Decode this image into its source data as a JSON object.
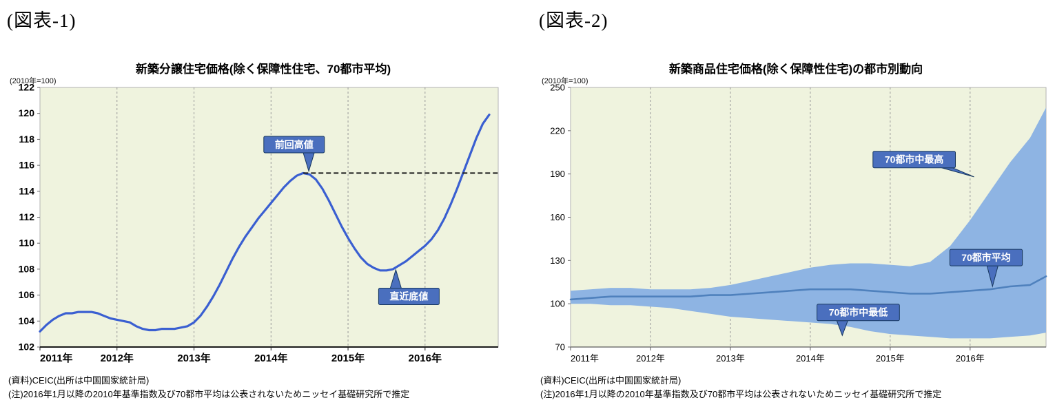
{
  "figures": [
    {
      "panel_label": "(図表-1)",
      "source": "(資料)CEIC(出所は中国国家統計局)",
      "note": "(注)2016年1月以降の2010年基準指数及び70都市平均は公表されないためニッセイ基礎研究所で推定"
    },
    {
      "panel_label": "(図表-2)",
      "source": "(資料)CEIC(出所は中国国家統計局)",
      "note": "(注)2016年1月以降の2010年基準指数及び70都市平均は公表されないためニッセイ基礎研究所で推定"
    }
  ],
  "chart_data": [
    {
      "id": "fig1",
      "type": "line",
      "title": "新築分譲住宅価格(除く保障性住宅、70都市平均)",
      "unit_label": "(2010年=100)",
      "xlim": [
        2011,
        2016.95
      ],
      "ylim": [
        102,
        122
      ],
      "ytick_step": 2,
      "xticks": [
        2011,
        2012,
        2013,
        2014,
        2015,
        2016
      ],
      "xtick_labels": [
        "2011年",
        "2012年",
        "2013年",
        "2014年",
        "2015年",
        "2016年"
      ],
      "background": "#eff3de",
      "grid": "vertical-only",
      "series": [
        {
          "name": "新築分譲住宅価格指数(70都市平均)",
          "color": "#3a5fd1",
          "width": 3.2,
          "x_start": 2011,
          "x_step": 0.0833333,
          "values": [
            103.2,
            103.7,
            104.1,
            104.4,
            104.6,
            104.6,
            104.7,
            104.7,
            104.7,
            104.6,
            104.4,
            104.2,
            104.1,
            104.0,
            103.9,
            103.6,
            103.4,
            103.3,
            103.3,
            103.4,
            103.4,
            103.4,
            103.5,
            103.6,
            103.9,
            104.4,
            105.1,
            105.9,
            106.8,
            107.8,
            108.8,
            109.7,
            110.5,
            111.2,
            111.9,
            112.5,
            113.1,
            113.7,
            114.3,
            114.8,
            115.2,
            115.4,
            115.3,
            114.9,
            114.2,
            113.3,
            112.3,
            111.3,
            110.4,
            109.6,
            108.9,
            108.4,
            108.1,
            107.9,
            107.9,
            108.0,
            108.3,
            108.6,
            109.0,
            109.4,
            109.8,
            110.3,
            111.0,
            111.9,
            113.0,
            114.2,
            115.5,
            116.8,
            118.1,
            119.2,
            119.9
          ]
        }
      ],
      "reference_line": {
        "value": 115.4,
        "from": 2014.42,
        "to": 2016.95,
        "color": "#1a1a1a",
        "style": "dashed"
      },
      "callouts": [
        {
          "label": "前回高値",
          "box_t": 2014.3,
          "box_v": 117.6,
          "tip_t": 2014.49,
          "tip_v": 115.55
        },
        {
          "label": "直近底値",
          "box_t": 2015.79,
          "box_v": 105.9,
          "tip_t": 2015.62,
          "tip_v": 107.95
        }
      ]
    },
    {
      "id": "fig2",
      "type": "band-line",
      "title": "新築商品住宅価格(除く保障性住宅)の都市別動向",
      "unit_label": "(2010年=100)",
      "xlim": [
        2011,
        2016.95
      ],
      "ylim": [
        70,
        250
      ],
      "ytick_step": 30,
      "xticks": [
        2011,
        2012,
        2013,
        2014,
        2015,
        2016
      ],
      "xtick_labels": [
        "2011年",
        "2012年",
        "2013年",
        "2014年",
        "2015年",
        "2016年"
      ],
      "background": "#eff3de",
      "grid": "vertical-only",
      "x": [
        2011.0,
        2011.25,
        2011.5,
        2011.75,
        2012.0,
        2012.25,
        2012.5,
        2012.75,
        2013.0,
        2013.25,
        2013.5,
        2013.75,
        2014.0,
        2014.25,
        2014.5,
        2014.75,
        2015.0,
        2015.25,
        2015.5,
        2015.75,
        2016.0,
        2016.25,
        2016.5,
        2016.75,
        2016.95
      ],
      "band": {
        "name_upper": "70都市中最高",
        "name_lower": "70都市中最低",
        "color": "#8eb4e3",
        "upper": [
          109,
          110,
          111,
          111,
          110,
          110,
          110,
          111,
          113,
          116,
          119,
          122,
          125,
          127,
          128,
          128,
          127,
          126,
          129,
          140,
          158,
          178,
          198,
          215,
          236
        ],
        "lower": [
          100,
          100,
          99,
          99,
          98,
          97,
          95,
          93,
          91,
          90,
          89,
          88,
          87,
          86,
          84,
          81,
          79,
          78,
          77,
          76,
          76,
          76,
          77,
          78,
          80
        ]
      },
      "series": [
        {
          "name": "70都市平均",
          "color": "#4f81bd",
          "width": 2.6,
          "values": [
            103,
            104,
            105,
            105,
            105,
            105,
            105,
            106,
            106,
            107,
            108,
            109,
            110,
            110,
            110,
            109,
            108,
            107,
            107,
            108,
            109,
            110,
            112,
            113,
            119
          ]
        }
      ],
      "callouts": [
        {
          "label": "70都市中最高",
          "box_t": 2015.3,
          "box_v": 200,
          "tip_t": 2016.05,
          "tip_v": 188
        },
        {
          "label": "70都市平均",
          "box_t": 2016.2,
          "box_v": 132,
          "tip_t": 2016.28,
          "tip_v": 112
        },
        {
          "label": "70都市中最低",
          "box_t": 2014.6,
          "box_v": 94,
          "tip_t": 2014.4,
          "tip_v": 78
        }
      ]
    }
  ]
}
